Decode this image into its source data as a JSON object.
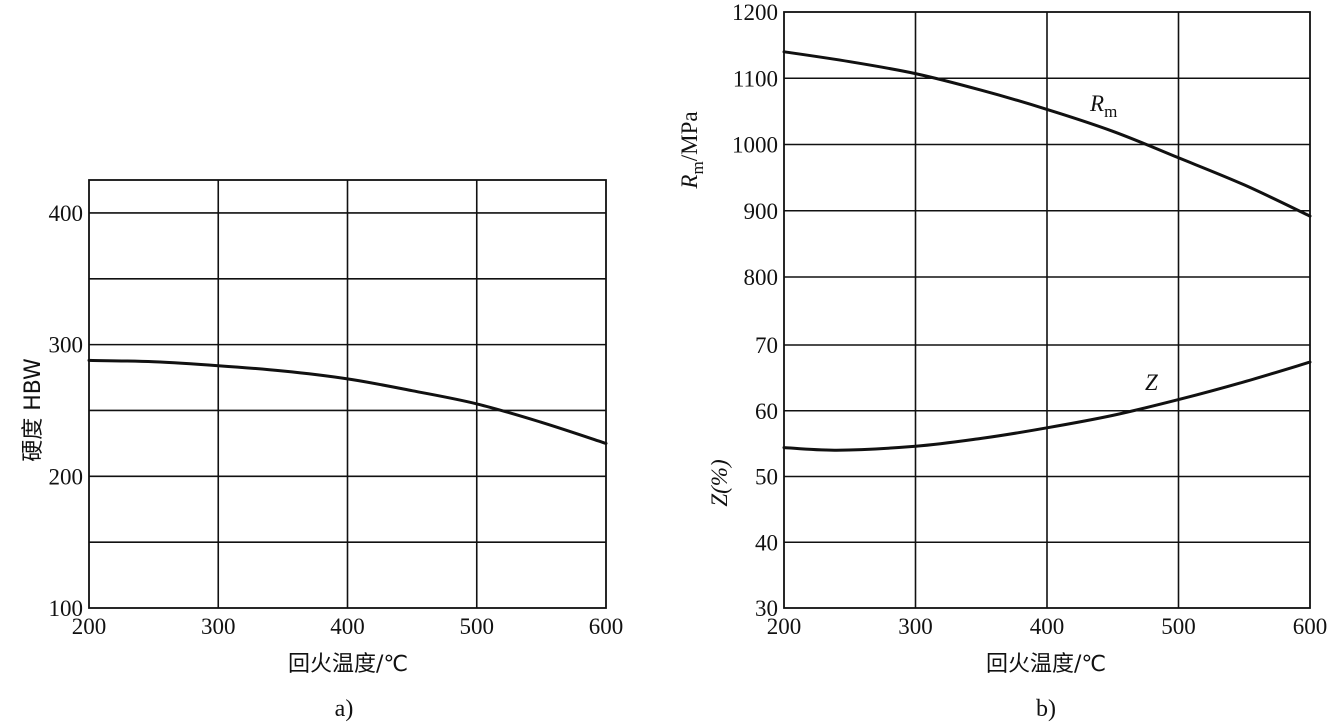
{
  "chart_data": [
    {
      "id": "a",
      "type": "line",
      "caption": "a)",
      "xlabel": "回火温度/℃",
      "ylabel": "硬度 HBW",
      "xlim": [
        200,
        600
      ],
      "ylim": [
        100,
        425
      ],
      "xticks": [
        200,
        300,
        400,
        500,
        600
      ],
      "xtick_labels": [
        "200",
        "300",
        "400",
        "500",
        "600"
      ],
      "yticks": [
        100,
        200,
        300,
        400
      ],
      "ytick_labels": [
        "100",
        "200",
        "300",
        "400"
      ],
      "ygrid": [
        150,
        200,
        250,
        300,
        350,
        400
      ],
      "grid": true,
      "series": [
        {
          "x": [
            200,
            250,
            300,
            350,
            400,
            450,
            500,
            550,
            600
          ],
          "y": [
            288,
            287,
            284,
            280,
            274,
            265,
            255,
            241,
            225
          ]
        }
      ]
    },
    {
      "id": "b",
      "type": "line",
      "caption": "b)",
      "xlabel": "回火温度/℃",
      "xlim": [
        200,
        600
      ],
      "xticks": [
        200,
        300,
        400,
        500,
        600
      ],
      "xtick_labels": [
        "200",
        "300",
        "400",
        "500",
        "600"
      ],
      "grid": true,
      "panels": [
        {
          "name": "upper",
          "ylabel_main": "R",
          "ylabel_sub": "m",
          "ylabel_suffix": "/MPa",
          "ylim": [
            800,
            1200
          ],
          "yticks": [
            800,
            900,
            1000,
            1100,
            1200
          ],
          "ytick_labels": [
            "800",
            "900",
            "1000",
            "1100",
            "1200"
          ],
          "series": [
            {
              "name_main": "R",
              "name_sub": "m",
              "x": [
                200,
                250,
                300,
                350,
                400,
                450,
                500,
                550,
                600
              ],
              "y": [
                1140,
                1125,
                1107,
                1082,
                1053,
                1020,
                980,
                939,
                892
              ]
            }
          ]
        },
        {
          "name": "lower",
          "ylabel": "Z(%)",
          "ylim": [
            30,
            70
          ],
          "yticks": [
            30,
            40,
            50,
            60,
            70
          ],
          "ytick_labels": [
            "30",
            "40",
            "50",
            "60",
            "70"
          ],
          "series": [
            {
              "name": "Z",
              "x": [
                200,
                240,
                300,
                350,
                400,
                450,
                500,
                550,
                600
              ],
              "y": [
                54.4,
                54.0,
                54.6,
                55.8,
                57.4,
                59.3,
                61.7,
                64.4,
                67.4
              ]
            }
          ]
        }
      ]
    }
  ]
}
